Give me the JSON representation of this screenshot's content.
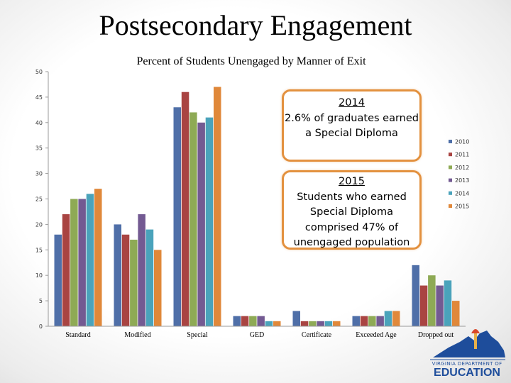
{
  "slide": {
    "title": "Postsecondary Engagement"
  },
  "chart_data": {
    "type": "bar",
    "title": "Percent of Students Unengaged by Manner of Exit",
    "categories": [
      "Standard",
      "Modified",
      "Special",
      "GED",
      "Certificate",
      "Exceeded Age",
      "Dropped out"
    ],
    "series": [
      {
        "name": "2010",
        "color": "#4f6fa8",
        "values": [
          18,
          20,
          43,
          2,
          3,
          2,
          12
        ]
      },
      {
        "name": "2011",
        "color": "#a94442",
        "values": [
          22,
          18,
          46,
          2,
          1,
          2,
          8
        ]
      },
      {
        "name": "2012",
        "color": "#8eaa55",
        "values": [
          25,
          17,
          42,
          2,
          1,
          2,
          10
        ]
      },
      {
        "name": "2013",
        "color": "#735a92",
        "values": [
          25,
          22,
          40,
          2,
          1,
          2,
          8
        ]
      },
      {
        "name": "2014",
        "color": "#4aa3bb",
        "values": [
          26,
          19,
          41,
          1,
          1,
          3,
          9
        ]
      },
      {
        "name": "2015",
        "color": "#e0883a",
        "values": [
          27,
          15,
          47,
          1,
          1,
          3,
          5
        ]
      }
    ],
    "yticks": [
      0,
      5,
      10,
      15,
      20,
      25,
      30,
      35,
      40,
      45,
      50
    ],
    "ylim": [
      0,
      50
    ],
    "grid": false,
    "legend": "right"
  },
  "callouts": {
    "first": {
      "year": "2014",
      "text": "2.6% of graduates earned a Special Diploma"
    },
    "second": {
      "year": "2015",
      "text": "Students who earned Special Diploma comprised 47% of unengaged population"
    }
  },
  "logo": {
    "line1": "VIRGINIA DEPARTMENT OF",
    "line2": "EDUCATION"
  }
}
